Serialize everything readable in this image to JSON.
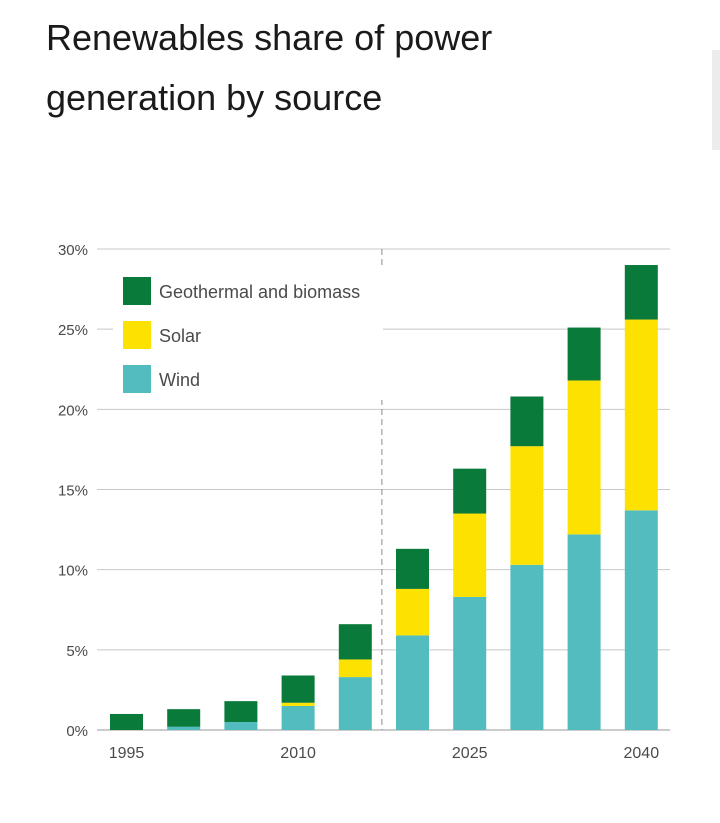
{
  "page": {
    "title": "Renewables share of power generation by source"
  },
  "chart_data": {
    "type": "bar",
    "stacked": true,
    "title": "Renewables share of power generation by source",
    "xlabel": "",
    "ylabel": "",
    "ylim": [
      0,
      30
    ],
    "yticks": [
      "0%",
      "5%",
      "10%",
      "15%",
      "20%",
      "25%",
      "30%"
    ],
    "ytick_values": [
      0,
      5,
      10,
      15,
      20,
      25,
      30
    ],
    "categories": [
      "1995",
      "2000",
      "2005",
      "2010",
      "2015",
      "2020",
      "2025",
      "2030",
      "2035",
      "2040"
    ],
    "xtick_labels": [
      "1995",
      "",
      "",
      "2010",
      "",
      "",
      "2025",
      "",
      "",
      "2040"
    ],
    "projection_divider_after_index": 4,
    "grid": "horizontal",
    "legend_position": "top-left",
    "series": [
      {
        "name": "Wind",
        "color": "#52bcbf",
        "values": [
          0.0,
          0.2,
          0.5,
          1.5,
          3.3,
          5.9,
          8.3,
          10.3,
          12.2,
          13.7
        ]
      },
      {
        "name": "Solar",
        "color": "#fde100",
        "values": [
          0.0,
          0.0,
          0.0,
          0.2,
          1.1,
          2.9,
          5.2,
          7.4,
          9.6,
          11.9
        ]
      },
      {
        "name": "Geothermal and biomass",
        "color": "#097a3a",
        "values": [
          1.0,
          1.1,
          1.3,
          1.7,
          2.2,
          2.5,
          2.8,
          3.1,
          3.3,
          3.4
        ]
      }
    ],
    "legend_order": [
      2,
      1,
      0
    ]
  }
}
